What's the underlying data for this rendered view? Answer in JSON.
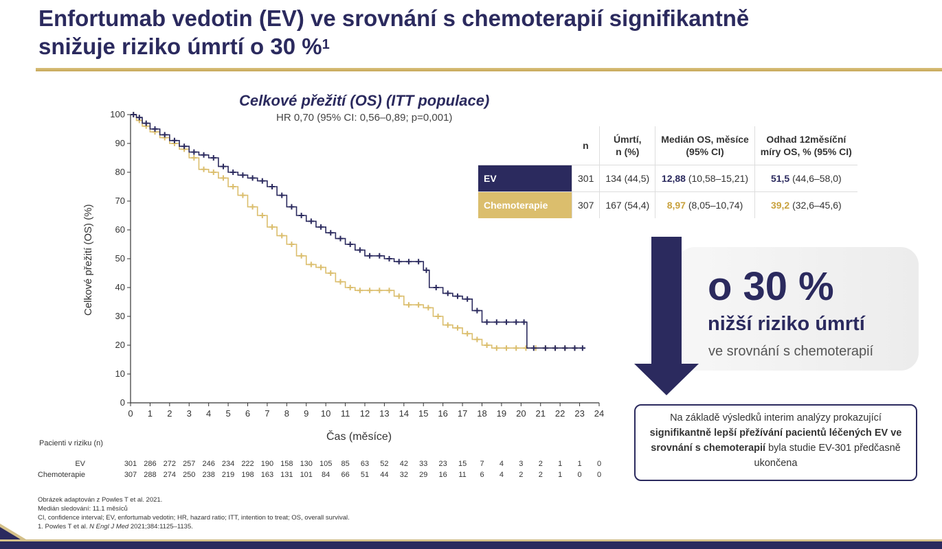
{
  "slide": {
    "title_line1": "Enfortumab vedotin (EV) ve srovnání s chemoterapií signifikantně",
    "title_line2": "snižuje riziko úmrtí o 30 %",
    "title_sup": "1",
    "colors": {
      "navy": "#2b2a5e",
      "gold": "#dbbe6d"
    }
  },
  "chart_data": {
    "type": "line",
    "title": "Celkové přežití (OS) (ITT populace)",
    "subtitle": "HR 0,70 (95% CI: 0,56–0,89; p=0,001)",
    "xlabel": "Čas (měsíce)",
    "ylabel": "Celkové přežití (OS) (%)",
    "xlim": [
      0,
      24
    ],
    "ylim": [
      0,
      100
    ],
    "x_ticks": [
      "0",
      "1",
      "2",
      "3",
      "4",
      "5",
      "6",
      "7",
      "8",
      "9",
      "10",
      "11",
      "12",
      "13",
      "14",
      "15",
      "16",
      "17",
      "18",
      "19",
      "20",
      "21",
      "22",
      "23",
      "24"
    ],
    "y_ticks": [
      "0",
      "10",
      "20",
      "30",
      "40",
      "50",
      "60",
      "70",
      "80",
      "90",
      "100"
    ],
    "grid": false,
    "series": [
      {
        "name": "EV",
        "color": "#2b2a5e",
        "x": [
          0,
          0.3,
          0.6,
          1,
          1.5,
          2,
          2.5,
          3,
          3.5,
          4,
          4.5,
          5,
          5.5,
          6,
          6.5,
          7,
          7.5,
          8,
          8.5,
          9,
          9.5,
          10,
          10.5,
          11,
          11.5,
          12,
          12.5,
          13,
          13.5,
          14,
          14.5,
          15,
          15.3,
          16,
          16.5,
          17,
          17.5,
          18,
          18.5,
          19,
          19.5,
          20,
          20.3,
          21,
          21.5,
          22,
          22.5,
          23,
          23.3
        ],
        "y": [
          100,
          99,
          97,
          95,
          93,
          91,
          89,
          87,
          86,
          85,
          82,
          80,
          79,
          78,
          77,
          75,
          72,
          68,
          65,
          63,
          61,
          59,
          57,
          55,
          53,
          51,
          51,
          50,
          49,
          49,
          49,
          46,
          40,
          38,
          37,
          36,
          32,
          28,
          28,
          28,
          28,
          28,
          19,
          19,
          19,
          19,
          19,
          19,
          19
        ]
      },
      {
        "name": "Chemoterapie",
        "color": "#dbbe6d",
        "x": [
          0,
          0.3,
          0.6,
          1,
          1.5,
          2,
          2.5,
          3,
          3.5,
          4,
          4.5,
          5,
          5.5,
          6,
          6.5,
          7,
          7.5,
          8,
          8.5,
          9,
          9.5,
          10,
          10.5,
          11,
          11.5,
          12,
          12.5,
          13,
          13.5,
          14,
          14.5,
          15,
          15.5,
          16,
          16.5,
          17,
          17.5,
          18,
          18.5,
          19,
          19.5,
          20,
          20.5,
          21,
          21.5,
          22,
          22.5,
          23
        ],
        "y": [
          100,
          98,
          96,
          94,
          92,
          90,
          88,
          85,
          81,
          80,
          78,
          75,
          72,
          68,
          65,
          61,
          58,
          55,
          51,
          48,
          47,
          45,
          42,
          40,
          39,
          39,
          39,
          39,
          37,
          34,
          34,
          33,
          30,
          27,
          26,
          24,
          22,
          20,
          19,
          19,
          19,
          19,
          19,
          19,
          19,
          19,
          19,
          19
        ]
      }
    ],
    "at_risk": {
      "title": "Pacienti v riziku (n)",
      "rows": [
        {
          "label": "EV",
          "values": [
            "301",
            "286",
            "272",
            "257",
            "246",
            "234",
            "222",
            "190",
            "158",
            "130",
            "105",
            "85",
            "63",
            "52",
            "42",
            "33",
            "23",
            "15",
            "7",
            "4",
            "3",
            "2",
            "1",
            "1",
            "0"
          ]
        },
        {
          "label": "Chemoterapie",
          "values": [
            "307",
            "288",
            "274",
            "250",
            "238",
            "219",
            "198",
            "163",
            "131",
            "101",
            "84",
            "66",
            "51",
            "44",
            "32",
            "29",
            "16",
            "11",
            "6",
            "4",
            "2",
            "2",
            "1",
            "0",
            "0"
          ]
        }
      ]
    }
  },
  "stats_table": {
    "headers": [
      "n",
      "Úmrtí,",
      "n (%)",
      "Medián OS, měsíce",
      "(95% CI)",
      "Odhad 12měsíční",
      "míry OS, % (95% CI)"
    ],
    "rows": [
      {
        "label": "EV",
        "n": "301",
        "deaths": "134 (44,5)",
        "median": "12,88",
        "median_ci": "(10,58–15,21)",
        "est": "51,5",
        "est_ci": "(44,6–58,0)"
      },
      {
        "label": "Chemoterapie",
        "n": "307",
        "deaths": "167 (54,4)",
        "median": "8,97",
        "median_ci": "(8,05–10,74)",
        "est": "39,2",
        "est_ci": "(32,6–45,6)"
      }
    ]
  },
  "highlight": {
    "pct": "o 30 %",
    "risk": "nižší riziko úmrtí",
    "vs": "ve srovnání s chemoterapií"
  },
  "note": {
    "part1": "Na základě výsledků interim analýzy prokazující",
    "bold": "signifikantně lepší přežívání pacientů léčených EV ve srovnání s chemoterapií",
    "part2": "byla studie EV-301 předčasně ukončena"
  },
  "footer": {
    "line1": "Obrázek adaptován z Powles T et al. 2021.",
    "line2": "Medián sledování: 11.1 měsíců",
    "line3": "CI, confidence interval; EV, enfortumab vedotin; HR, hazard ratio; ITT, intention to treat; OS, overall survival.",
    "line4_pre": "1. Powles T et al. ",
    "line4_journal": "N Engl J Med",
    "line4_post": " 2021;384:1125–1135."
  }
}
